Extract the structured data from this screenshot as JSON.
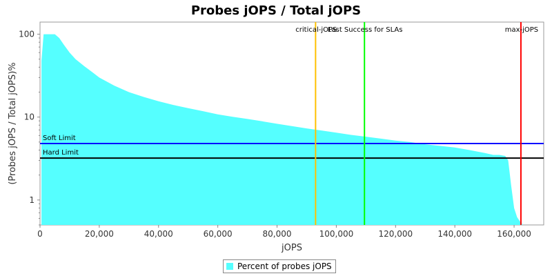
{
  "chart_data": {
    "type": "area",
    "title": "Probes jOPS / Total jOPS",
    "xlabel": "jOPS",
    "ylabel": "(Probes jOPS / Total jOPS)%",
    "y_scale": "log",
    "xlim": [
      0,
      170000
    ],
    "ylim": [
      0.5,
      140
    ],
    "x_ticks": [
      0,
      20000,
      40000,
      60000,
      80000,
      100000,
      120000,
      140000,
      160000
    ],
    "x_tick_labels": [
      "0",
      "20,000",
      "40,000",
      "60,000",
      "80,000",
      "100,000",
      "120,000",
      "140,000",
      "160,000"
    ],
    "y_ticks": [
      1,
      10,
      100
    ],
    "y_tick_labels": [
      "1",
      "10",
      "100"
    ],
    "grid": false,
    "legend_position": "bottom-center",
    "series": [
      {
        "name": "Percent of probes jOPS",
        "color": "#55ffff",
        "x": [
          500,
          1200,
          2000,
          5000,
          6500,
          8000,
          10000,
          12000,
          15000,
          18000,
          20000,
          25000,
          30000,
          35000,
          40000,
          45000,
          50000,
          55000,
          60000,
          65000,
          70000,
          75000,
          80000,
          85000,
          90000,
          95000,
          100000,
          105000,
          110000,
          115000,
          120000,
          125000,
          130000,
          135000,
          140000,
          145000,
          150000,
          153000,
          155000,
          157000,
          158000,
          159000,
          160000,
          161000,
          162000,
          163000,
          165000,
          170000
        ],
        "values": [
          48,
          100,
          100,
          100,
          90,
          75,
          60,
          50,
          41,
          34,
          30,
          24,
          20,
          17.5,
          15.5,
          14,
          12.8,
          11.8,
          10.8,
          10.1,
          9.5,
          8.9,
          8.3,
          7.8,
          7.3,
          6.9,
          6.5,
          6.1,
          5.8,
          5.5,
          5.2,
          5.0,
          4.7,
          4.5,
          4.3,
          4.0,
          3.7,
          3.5,
          3.5,
          3.4,
          3.0,
          1.5,
          0.8,
          0.62,
          0.55,
          0.5,
          0.5,
          0.5
        ]
      }
    ],
    "horizontal_lines": [
      {
        "label": "Soft Limit",
        "value": 4.8,
        "color": "#0000ff"
      },
      {
        "label": "Hard Limit",
        "value": 3.2,
        "color": "#000000"
      }
    ],
    "vertical_lines": [
      {
        "label": "critical-jOPS",
        "value": 93000,
        "color": "#ffc000"
      },
      {
        "label": "Last Success for SLAs",
        "value": 109500,
        "color": "#00ff00"
      },
      {
        "label": "max-jOPS",
        "value": 162300,
        "color": "#ff0000"
      }
    ]
  }
}
